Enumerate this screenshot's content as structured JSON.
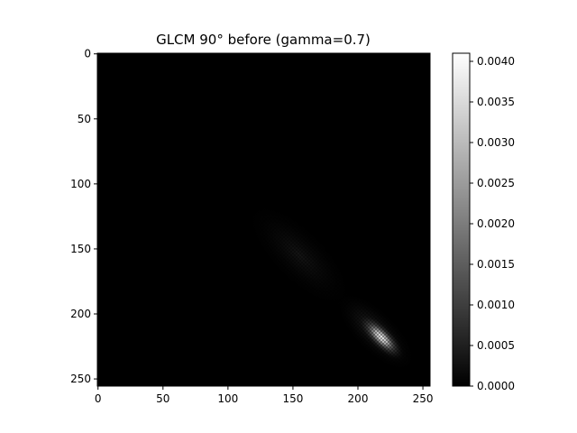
{
  "chart_data": {
    "type": "heatmap",
    "title": "GLCM 90° before (gamma=0.7)",
    "xlabel": "",
    "ylabel": "",
    "xlim": [
      0,
      255
    ],
    "ylim": [
      255,
      0
    ],
    "x_ticks": [
      "0",
      "50",
      "100",
      "150",
      "200",
      "250"
    ],
    "y_ticks": [
      "0",
      "50",
      "100",
      "150",
      "200",
      "250"
    ],
    "colormap": "gray",
    "background_color": "#000000",
    "hotspot": {
      "center": [
        218,
        218
      ],
      "peak_value": 0.0041,
      "orientation": "anti-diagonal, elongated along the main diagonal"
    },
    "faint_texture_region": {
      "x_range": [
        110,
        200
      ],
      "y_range": [
        110,
        200
      ]
    },
    "colorbar": {
      "min": 0.0,
      "max": 0.0041,
      "ticks": [
        "0.0000",
        "0.0005",
        "0.0010",
        "0.0015",
        "0.0020",
        "0.0025",
        "0.0030",
        "0.0035",
        "0.0040"
      ],
      "tick_values": [
        0.0,
        0.0005,
        0.001,
        0.0015,
        0.002,
        0.0025,
        0.003,
        0.0035,
        0.004
      ]
    }
  }
}
